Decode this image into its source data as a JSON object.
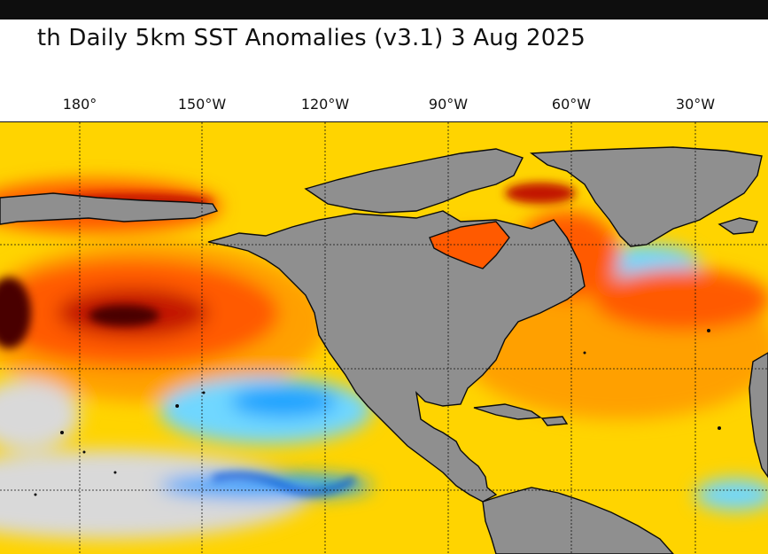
{
  "title": "th Daily 5km SST Anomalies  (v3.1)   3 Aug 2025",
  "longitude_labels": [
    "180°",
    "150°W",
    "120°W",
    "90°W",
    "60°W",
    "30°W"
  ],
  "colors": {
    "land": "#8f8f8f",
    "neutral_water": "#d9d9d9",
    "warm_light": "#ffd400",
    "warm_mid": "#ffa000",
    "warm_high": "#ff5a00",
    "warm_extreme": "#c21500",
    "warm_peak": "#4a0505",
    "cool_light": "#6fd7ff",
    "cool_mid": "#1aa3ff",
    "cool_strong": "#0a4fd6"
  }
}
